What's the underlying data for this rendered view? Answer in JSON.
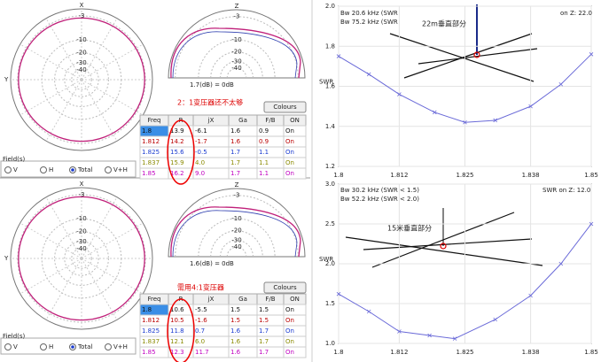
{
  "panels": [
    {
      "azimuth_axis": "X",
      "azimuth_side": "Y",
      "elevation_axis": "Z",
      "ring_labels": [
        "-3",
        "-10",
        "-20",
        "-30",
        "-40"
      ],
      "elevation_label": "1.7(dB) = 0dB",
      "note": "2：1变压器还不太够",
      "button": "Colours",
      "columns": [
        "Freq",
        "R",
        "jX",
        "Ga",
        "F/B",
        "ON"
      ],
      "rows": [
        [
          "1.8",
          "13.9",
          "-6.1",
          "1.6",
          "0.9",
          "On"
        ],
        [
          "1.812",
          "14.2",
          "-1.7",
          "1.6",
          "0.9",
          "On"
        ],
        [
          "1.825",
          "15.6",
          "-0.5",
          "1.7",
          "1.1",
          "On"
        ],
        [
          "1.837",
          "15.9",
          "4.0",
          "1.7",
          "1.1",
          "On"
        ],
        [
          "1.85",
          "16.2",
          "9.0",
          "1.7",
          "1.1",
          "On"
        ]
      ],
      "field_label": "Field(s)",
      "field_options": [
        "V",
        "H",
        "Total",
        "V+H"
      ]
    },
    {
      "azimuth_axis": "X",
      "azimuth_side": "Y",
      "elevation_axis": "Z",
      "ring_labels": [
        "-3",
        "-10",
        "-20",
        "-30",
        "-40"
      ],
      "elevation_label": "1.6(dB) = 0dB",
      "note": "需用4:1变压器",
      "button": "Colours",
      "columns": [
        "Freq",
        "R",
        "jX",
        "Ga",
        "F/B",
        "ON"
      ],
      "rows": [
        [
          "1.8",
          "10.6",
          "-5.5",
          "1.5",
          "1.5",
          "On"
        ],
        [
          "1.812",
          "10.5",
          "-1.6",
          "1.5",
          "1.5",
          "On"
        ],
        [
          "1.825",
          "11.8",
          "0.7",
          "1.6",
          "1.7",
          "On"
        ],
        [
          "1.837",
          "12.1",
          "6.0",
          "1.6",
          "1.7",
          "On"
        ],
        [
          "1.85",
          "12.3",
          "11.7",
          "1.6",
          "1.7",
          "On"
        ]
      ],
      "field_label": "Field(s)",
      "field_options": [
        "V",
        "H",
        "Total",
        "V+H"
      ]
    }
  ],
  "chart_data": [
    {
      "type": "line",
      "ylabel": "SWR",
      "info": [
        "Bw 20.6 kHz (SWR",
        "Bw 75.2 kHz (SWR",
        "on Z: 22.0"
      ],
      "annotation": "22m垂直部分",
      "x": [
        1.8,
        1.806,
        1.812,
        1.819,
        1.825,
        1.831,
        1.838,
        1.844,
        1.85
      ],
      "values": [
        1.75,
        1.66,
        1.56,
        1.47,
        1.42,
        1.43,
        1.5,
        1.61,
        1.76
      ],
      "color": "#6a6ad8",
      "xlim": [
        1.8,
        1.85
      ],
      "xticks": [
        1.8,
        1.812,
        1.825,
        1.838,
        1.85
      ],
      "ylim": [
        1.2,
        2.0
      ],
      "yticks": [
        1.2,
        1.4,
        1.6,
        1.8,
        {
          "value": 2,
          "label": "2.0"
        }
      ]
    },
    {
      "type": "line",
      "ylabel": "SWR",
      "info": [
        "Bw 30.2 kHz (SWR < 1.5)",
        "Bw 52.2 kHz (SWR < 2.0)",
        "SWR on Z: 12.0"
      ],
      "annotation": "15米垂直部分",
      "x": [
        1.8,
        1.806,
        1.812,
        1.818,
        1.823,
        1.831,
        1.838,
        1.844,
        1.85
      ],
      "values": [
        1.62,
        1.4,
        1.15,
        1.1,
        1.06,
        1.3,
        1.6,
        2.0,
        2.5
      ],
      "color": "#6a6ad8",
      "xlim": [
        1.8,
        1.85
      ],
      "xticks": [
        1.8,
        1.812,
        1.825,
        1.838,
        1.85
      ],
      "ylim": [
        1.0,
        3.0
      ],
      "yticks": [
        {
          "value": 1,
          "label": "1.0"
        },
        1.5,
        {
          "value": 2,
          "label": "2.0"
        },
        2.5,
        {
          "value": 3,
          "label": "3.0"
        }
      ]
    }
  ]
}
